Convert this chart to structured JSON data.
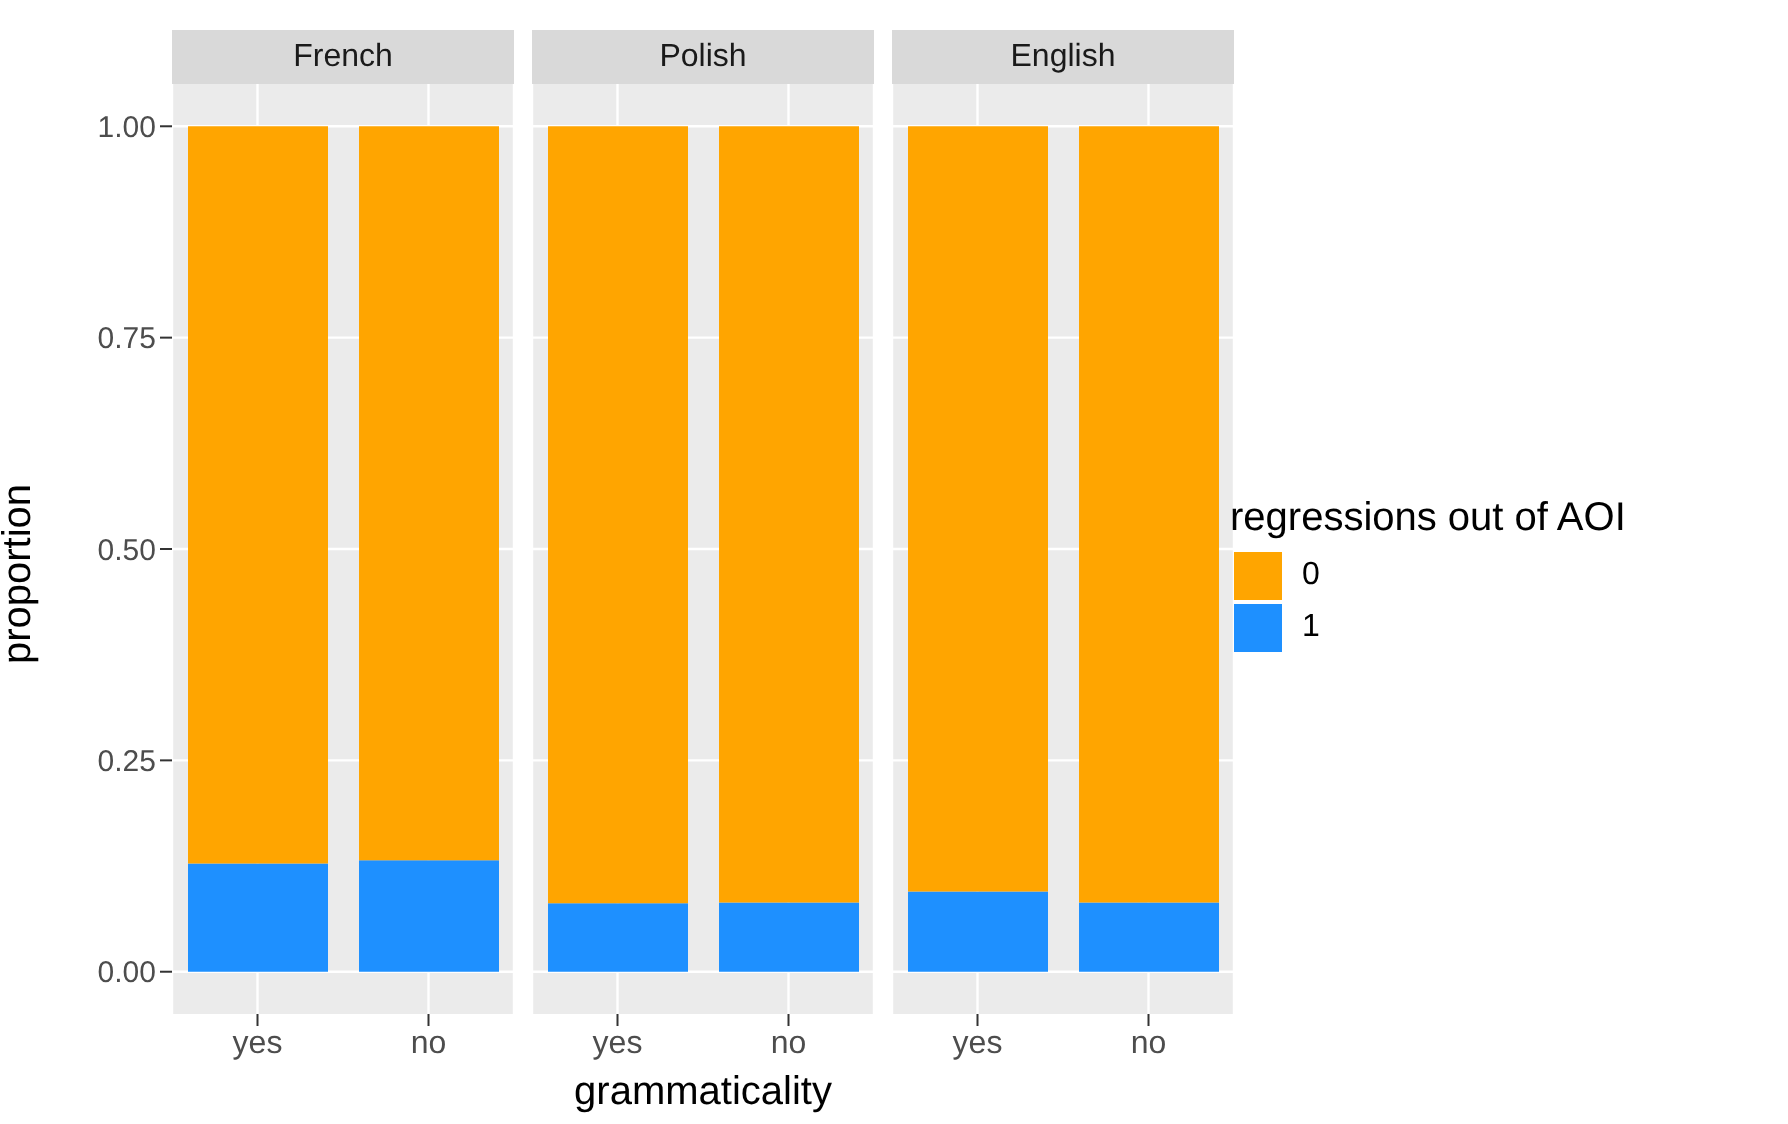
{
  "chart_data": [
    {
      "type": "bar",
      "title": "French",
      "ylabel": "proportion",
      "categories": [
        "yes",
        "no"
      ],
      "stacked": true,
      "grid": true,
      "series": [
        {
          "color": "#1e90ff",
          "values": [
            0.128,
            0.132
          ]
        },
        {
          "color": "#ffa500",
          "values": [
            0.872,
            0.868
          ]
        }
      ],
      "ylim": [
        -0.05,
        1.05
      ],
      "yticks": [
        {
          "value": 0,
          "label": "0.00"
        },
        {
          "value": 0.25,
          "label": "0.25"
        },
        {
          "value": 0.5,
          "label": "0.50"
        },
        {
          "value": 0.75,
          "label": "0.75"
        },
        {
          "value": 1,
          "label": "1.00"
        }
      ]
    },
    {
      "type": "bar",
      "title": "Polish",
      "xlabel": "grammaticality",
      "categories": [
        "yes",
        "no"
      ],
      "stacked": true,
      "grid": true,
      "tick_labels": "x",
      "series": [
        {
          "color": "#1e90ff",
          "values": [
            0.081,
            0.082
          ]
        },
        {
          "color": "#ffa500",
          "values": [
            0.919,
            0.918
          ]
        }
      ],
      "ylim": [
        -0.05,
        1.05
      ],
      "yticks": [
        0,
        0.25,
        0.5,
        0.75,
        1
      ]
    },
    {
      "type": "bar",
      "title": "English",
      "categories": [
        "yes",
        "no"
      ],
      "stacked": true,
      "grid": true,
      "legend": "right",
      "legend_title": "regressions out of AOI",
      "tick_labels": "x",
      "series": [
        {
          "name": "1",
          "color": "#1e90ff",
          "values": [
            0.095,
            0.082
          ]
        },
        {
          "name": "0",
          "color": "#ffa500",
          "values": [
            0.905,
            0.918
          ]
        }
      ],
      "ylim": [
        -0.05,
        1.05
      ],
      "yticks": [
        0,
        0.25,
        0.5,
        0.75,
        1
      ]
    }
  ]
}
